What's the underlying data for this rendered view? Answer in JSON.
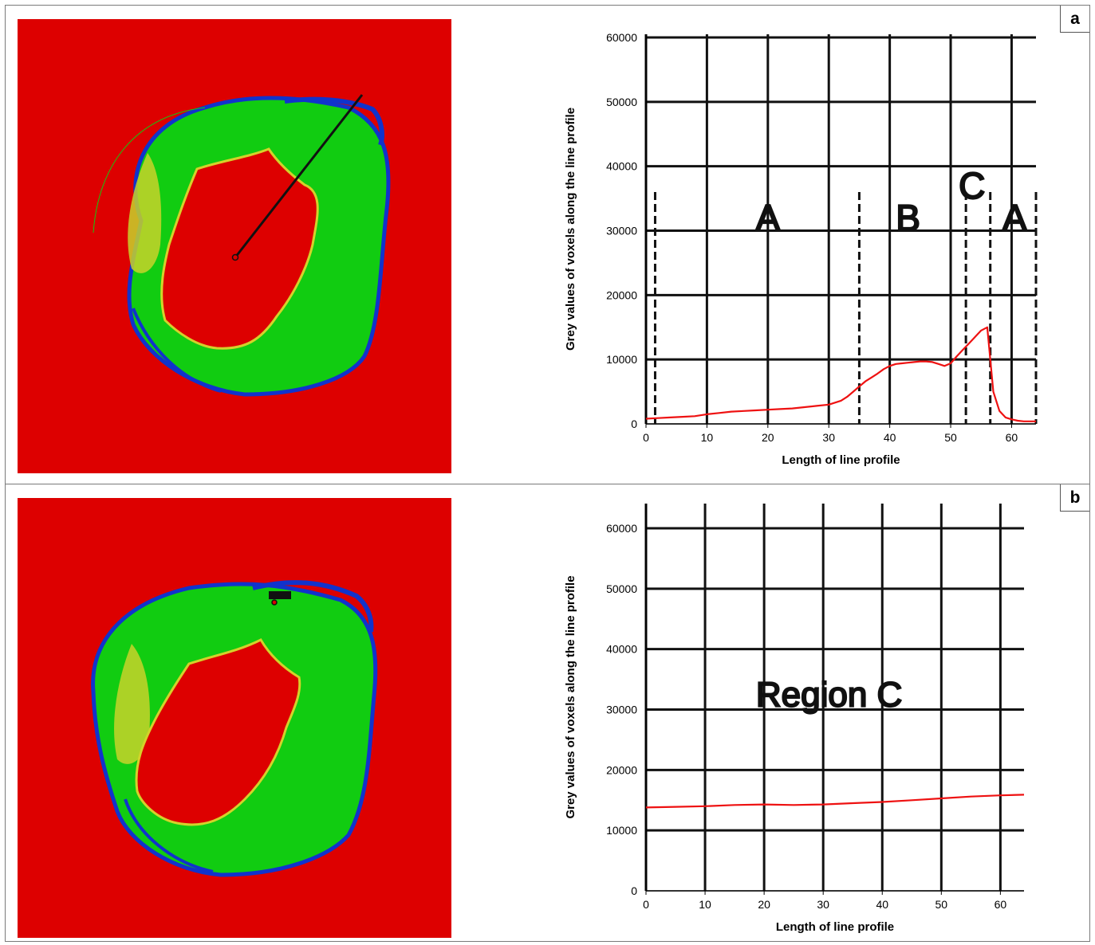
{
  "panels": {
    "a": {
      "label": "a"
    },
    "b": {
      "label": "b"
    }
  },
  "colors": {
    "background_red": "#dd0000",
    "bone_green": "#11cc11",
    "edge_blue": "#1133cc",
    "yellow": "#d4d22a",
    "profile_red": "#ee1111"
  },
  "chart_data": [
    {
      "type": "line",
      "panel": "a",
      "xlabel": "Length of line profile",
      "ylabel": "Grey values of voxels along the line profile",
      "xlim": [
        0,
        64
      ],
      "ylim": [
        0,
        60000
      ],
      "xticks": [
        "0",
        "10",
        "20",
        "30",
        "40",
        "50",
        "60"
      ],
      "yticks": [
        "0",
        "10000",
        "20000",
        "30000",
        "40000",
        "50000",
        "60000"
      ],
      "grid": true,
      "region_labels": [
        {
          "text": "A",
          "x": 20,
          "y": 30000
        },
        {
          "text": "B",
          "x": 43,
          "y": 30000
        },
        {
          "text": "C",
          "x": 53.5,
          "y": 35000
        },
        {
          "text": "A",
          "x": 60.5,
          "y": 30000
        }
      ],
      "region_boundaries": [
        1.5,
        35,
        52.5,
        56.5,
        64
      ],
      "series": [
        {
          "x": [
            0,
            2,
            4,
            6,
            8,
            10,
            12,
            14,
            16,
            18,
            20,
            22,
            24,
            26,
            28,
            30,
            32,
            33,
            34,
            35,
            36,
            37,
            38,
            39,
            40,
            41,
            42,
            43,
            44,
            45,
            46,
            47,
            48,
            49,
            50,
            51,
            52,
            53,
            54,
            55,
            56,
            56.5,
            57,
            58,
            59,
            60,
            61,
            62,
            63,
            64
          ],
          "y": [
            800,
            900,
            1000,
            1100,
            1200,
            1500,
            1700,
            1900,
            2000,
            2100,
            2200,
            2300,
            2400,
            2600,
            2800,
            3000,
            3600,
            4200,
            5000,
            5800,
            6600,
            7200,
            7800,
            8500,
            9000,
            9300,
            9400,
            9500,
            9600,
            9700,
            9700,
            9600,
            9300,
            9000,
            9400,
            10500,
            11500,
            12500,
            13500,
            14500,
            15000,
            10000,
            5000,
            2000,
            1000,
            700,
            500,
            400,
            400,
            400
          ]
        }
      ]
    },
    {
      "type": "line",
      "panel": "b",
      "title": "Region C",
      "xlabel": "Length of line profile",
      "ylabel": "Grey values of voxels along the line profile",
      "xlim": [
        0,
        64
      ],
      "ylim": [
        0,
        60000
      ],
      "xticks": [
        "0",
        "10",
        "20",
        "30",
        "40",
        "50",
        "60"
      ],
      "yticks": [
        "0",
        "10000",
        "20000",
        "30000",
        "40000",
        "50000",
        "60000"
      ],
      "grid": true,
      "series": [
        {
          "x": [
            0,
            5,
            10,
            15,
            20,
            25,
            30,
            35,
            40,
            45,
            50,
            55,
            60,
            64
          ],
          "y": [
            13800,
            13900,
            14000,
            14200,
            14300,
            14200,
            14300,
            14500,
            14700,
            15000,
            15300,
            15600,
            15800,
            15900
          ]
        }
      ]
    }
  ]
}
